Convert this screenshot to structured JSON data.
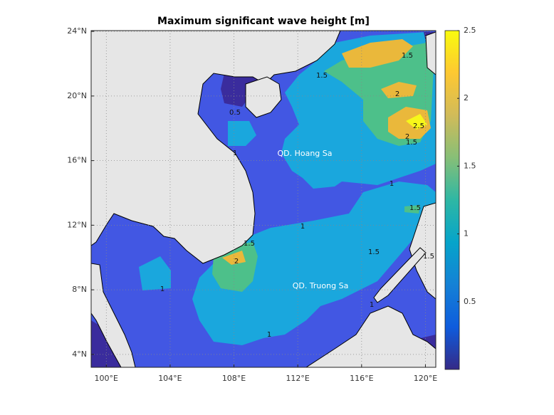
{
  "chart_data": {
    "type": "contourf",
    "title": "Maximum significant wave height [m]",
    "xlim": [
      99.05,
      120.65
    ],
    "ylim": [
      3.2,
      24.05
    ],
    "xticks": [
      {
        "value": 100,
        "label": "100°E"
      },
      {
        "value": 104,
        "label": "104°E"
      },
      {
        "value": 108,
        "label": "108°E"
      },
      {
        "value": 112,
        "label": "112°E"
      },
      {
        "value": 116,
        "label": "116°E"
      },
      {
        "value": 120,
        "label": "120°E"
      }
    ],
    "yticks": [
      {
        "value": 4,
        "label": "4°N"
      },
      {
        "value": 8,
        "label": "8°N"
      },
      {
        "value": 12,
        "label": "12°N"
      },
      {
        "value": 16,
        "label": "16°N"
      },
      {
        "value": 20,
        "label": "20°N"
      },
      {
        "value": 24,
        "label": "24°N"
      }
    ],
    "grid": true,
    "levels": [
      0,
      0.5,
      1,
      1.5,
      2,
      2.5
    ],
    "band_colors": [
      "#3a2c9d",
      "#4257e3",
      "#1aa7dd",
      "#4dc08a",
      "#eab83b",
      "#f7f71a"
    ],
    "land_color": "#e6e6e6",
    "colorbar": {
      "clim": [
        0,
        2.5
      ],
      "ticks": [
        0.5,
        1,
        1.5,
        2,
        2.5
      ],
      "colormap": [
        "#352a87",
        "#0f5cdd",
        "#1481d6",
        "#06a4ca",
        "#2eb7a4",
        "#87bf77",
        "#d1bb59",
        "#fec832",
        "#f9fb0e"
      ]
    },
    "annotations": [
      "QD. Hoang Sa",
      "QD. Truong Sa"
    ],
    "contour_labels": [
      1.5,
      1.5,
      0.5,
      1,
      2,
      2.5,
      2,
      1.5,
      1,
      1,
      1.5,
      1.5,
      2,
      1,
      1,
      1.5,
      1.5,
      1
    ]
  }
}
